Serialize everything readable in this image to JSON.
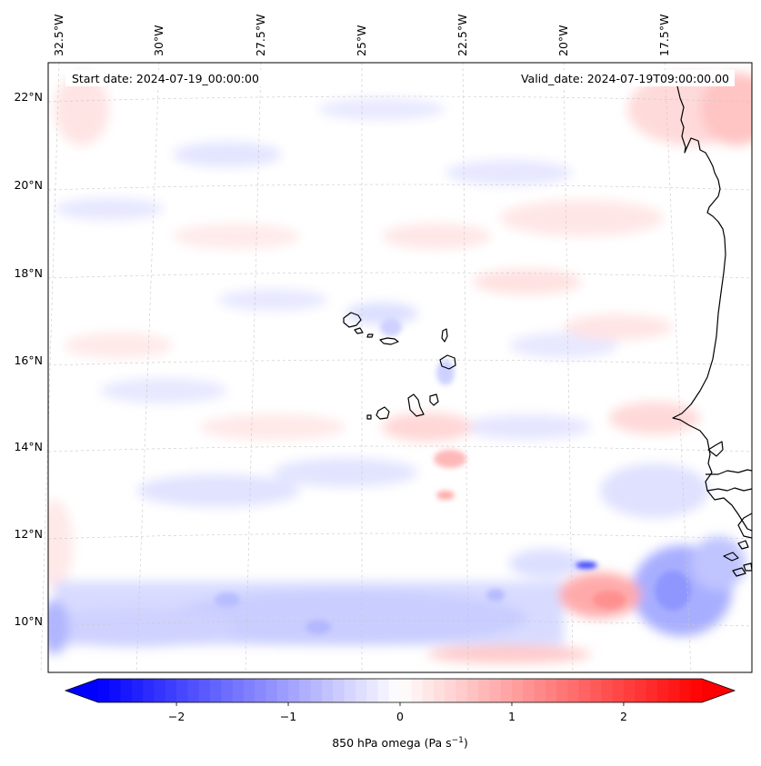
{
  "map": {
    "start_date_text": "Start date: 2024-07-19_00:00:00",
    "valid_date_text": "Valid_date: 2024-07-19T09:00:00.00",
    "longitude_labels": [
      "32.5°W",
      "30°W",
      "27.5°W",
      "25°W",
      "22.5°W",
      "20°W",
      "17.5°W"
    ],
    "latitude_labels": [
      "22°N",
      "20°N",
      "18°N",
      "16°N",
      "14°N",
      "12°N",
      "10°N"
    ],
    "field": "850 hPa omega",
    "coastline_color": "#000000",
    "gridline_style": "dashed grey"
  },
  "colorbar": {
    "label_prefix": "850 hPa omega (Pa s",
    "label_exponent": "−1",
    "label_suffix": ")",
    "ticks": [
      "−2",
      "−1",
      "0",
      "1",
      "2"
    ],
    "tick_values": [
      -2,
      -1,
      0,
      1,
      2
    ],
    "range": [
      -2.7,
      2.7
    ],
    "extend": "both",
    "colormap": "bwr",
    "negative_color": "#0000ff",
    "positive_color": "#ff0000",
    "center_color": "#ffffff"
  }
}
